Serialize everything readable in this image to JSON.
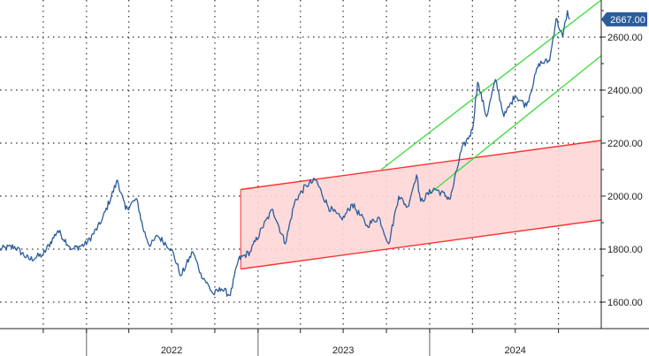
{
  "chart_data": {
    "type": "line",
    "title": "",
    "xlabel": "",
    "ylabel": "",
    "x_axis": {
      "range": [
        "2021-07-01",
        "2024-12-31"
      ],
      "labels": [
        {
          "text": "2022",
          "at": "2022-07-01"
        },
        {
          "text": "2023",
          "at": "2023-07-01"
        },
        {
          "text": "2024",
          "at": "2024-07-01"
        }
      ],
      "year_separators": [
        "2022-01-01",
        "2023-01-01",
        "2024-01-01"
      ]
    },
    "y_axis": {
      "position": "right",
      "range": [
        1500,
        2740
      ],
      "ticks": [
        1600,
        1800,
        2000,
        2200,
        2400,
        2600
      ],
      "tick_labels": [
        "1600.00",
        "1800.00",
        "2000.00",
        "2200.00",
        "2400.00",
        "2600.00"
      ]
    },
    "grid": true,
    "legend": "none",
    "last_price": {
      "value": 2667,
      "label": "2667.00"
    },
    "series": [
      {
        "color": "#2b5d9b",
        "points": [
          {
            "x": "2021-07-01",
            "y": 1800
          },
          {
            "x": "2021-08-01",
            "y": 1810
          },
          {
            "x": "2021-09-01",
            "y": 1760
          },
          {
            "x": "2021-10-01",
            "y": 1780
          },
          {
            "x": "2021-11-01",
            "y": 1870
          },
          {
            "x": "2021-12-01",
            "y": 1800
          },
          {
            "x": "2022-01-01",
            "y": 1820
          },
          {
            "x": "2022-02-01",
            "y": 1900
          },
          {
            "x": "2022-03-08",
            "y": 2060
          },
          {
            "x": "2022-03-25",
            "y": 1950
          },
          {
            "x": "2022-04-18",
            "y": 1990
          },
          {
            "x": "2022-05-01",
            "y": 1880
          },
          {
            "x": "2022-05-16",
            "y": 1810
          },
          {
            "x": "2022-06-01",
            "y": 1850
          },
          {
            "x": "2022-07-01",
            "y": 1800
          },
          {
            "x": "2022-07-21",
            "y": 1700
          },
          {
            "x": "2022-08-15",
            "y": 1790
          },
          {
            "x": "2022-09-01",
            "y": 1710
          },
          {
            "x": "2022-09-28",
            "y": 1630
          },
          {
            "x": "2022-10-15",
            "y": 1650
          },
          {
            "x": "2022-11-03",
            "y": 1625
          },
          {
            "x": "2022-11-20",
            "y": 1760
          },
          {
            "x": "2022-12-15",
            "y": 1790
          },
          {
            "x": "2023-01-10",
            "y": 1880
          },
          {
            "x": "2023-02-01",
            "y": 1950
          },
          {
            "x": "2023-02-28",
            "y": 1820
          },
          {
            "x": "2023-03-20",
            "y": 1980
          },
          {
            "x": "2023-04-13",
            "y": 2040
          },
          {
            "x": "2023-05-04",
            "y": 2060
          },
          {
            "x": "2023-05-30",
            "y": 1960
          },
          {
            "x": "2023-06-29",
            "y": 1910
          },
          {
            "x": "2023-07-20",
            "y": 1970
          },
          {
            "x": "2023-08-21",
            "y": 1890
          },
          {
            "x": "2023-09-15",
            "y": 1920
          },
          {
            "x": "2023-10-06",
            "y": 1820
          },
          {
            "x": "2023-10-27",
            "y": 2000
          },
          {
            "x": "2023-11-15",
            "y": 1960
          },
          {
            "x": "2023-12-04",
            "y": 2080
          },
          {
            "x": "2023-12-13",
            "y": 1980
          },
          {
            "x": "2024-01-10",
            "y": 2030
          },
          {
            "x": "2024-02-14",
            "y": 1990
          },
          {
            "x": "2024-03-08",
            "y": 2170
          },
          {
            "x": "2024-04-01",
            "y": 2250
          },
          {
            "x": "2024-04-12",
            "y": 2430
          },
          {
            "x": "2024-05-01",
            "y": 2300
          },
          {
            "x": "2024-05-20",
            "y": 2440
          },
          {
            "x": "2024-06-07",
            "y": 2300
          },
          {
            "x": "2024-07-01",
            "y": 2380
          },
          {
            "x": "2024-07-25",
            "y": 2340
          },
          {
            "x": "2024-08-20",
            "y": 2500
          },
          {
            "x": "2024-09-12",
            "y": 2510
          },
          {
            "x": "2024-09-26",
            "y": 2670
          },
          {
            "x": "2024-10-10",
            "y": 2600
          },
          {
            "x": "2024-10-20",
            "y": 2700
          },
          {
            "x": "2024-10-25",
            "y": 2667
          }
        ]
      }
    ],
    "annotations": [
      {
        "type": "channel",
        "color": "#ff3030",
        "fill": "#ffd6d6",
        "lower": [
          {
            "x": "2022-11-25",
            "y": 1725
          },
          {
            "x": "2024-12-31",
            "y": 1910
          }
        ],
        "upper": [
          {
            "x": "2022-11-25",
            "y": 2025
          },
          {
            "x": "2024-12-31",
            "y": 2210
          }
        ]
      },
      {
        "type": "channel",
        "color": "#44dd44",
        "lower": [
          {
            "x": "2023-12-29",
            "y": 2005
          },
          {
            "x": "2024-12-31",
            "y": 2530
          }
        ],
        "upper": [
          {
            "x": "2023-09-20",
            "y": 2100
          },
          {
            "x": "2024-12-31",
            "y": 2740
          }
        ]
      }
    ]
  }
}
